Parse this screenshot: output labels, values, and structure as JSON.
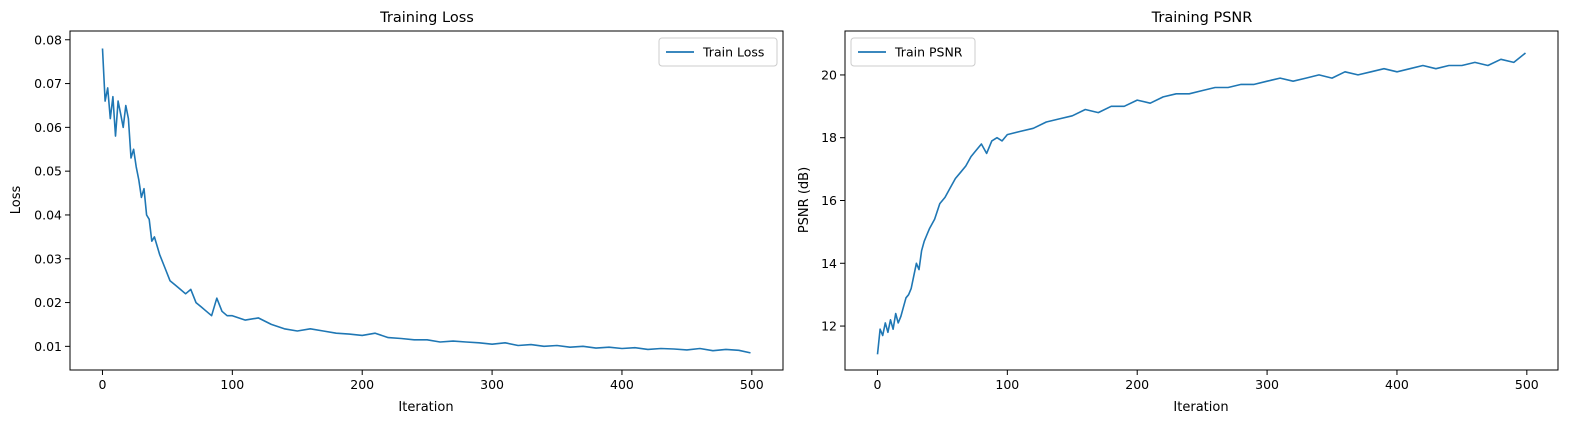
{
  "colors": {
    "line": "#1f77b4",
    "axes": "#000000",
    "legend_edge": "#cccccc"
  },
  "chart_data": [
    {
      "type": "line",
      "title": "Training Loss",
      "xlabel": "Iteration",
      "ylabel": "Loss",
      "xlim": [
        -25,
        524
      ],
      "ylim": [
        0.0046,
        0.082
      ],
      "xticks": [
        0,
        100,
        200,
        300,
        400,
        500
      ],
      "xtick_labels": [
        "0",
        "100",
        "200",
        "300",
        "400",
        "500"
      ],
      "yticks": [
        0.01,
        0.02,
        0.03,
        0.04,
        0.05,
        0.06,
        0.07,
        0.08
      ],
      "ytick_labels": [
        "0.01",
        "0.02",
        "0.03",
        "0.04",
        "0.05",
        "0.06",
        "0.07",
        "0.08"
      ],
      "grid": false,
      "legend": "upper-right",
      "series": [
        {
          "name": "Train Loss",
          "x": [
            0,
            2,
            4,
            6,
            8,
            10,
            12,
            14,
            16,
            18,
            20,
            22,
            24,
            26,
            28,
            30,
            32,
            34,
            36,
            38,
            40,
            44,
            48,
            52,
            56,
            60,
            64,
            68,
            72,
            76,
            80,
            84,
            88,
            92,
            96,
            100,
            110,
            120,
            130,
            140,
            150,
            160,
            170,
            180,
            190,
            200,
            210,
            220,
            230,
            240,
            250,
            260,
            270,
            280,
            290,
            300,
            310,
            320,
            330,
            340,
            350,
            360,
            370,
            380,
            390,
            400,
            410,
            420,
            430,
            440,
            450,
            460,
            470,
            480,
            490,
            499
          ],
          "y": [
            0.078,
            0.066,
            0.069,
            0.062,
            0.067,
            0.058,
            0.066,
            0.063,
            0.06,
            0.065,
            0.062,
            0.053,
            0.055,
            0.051,
            0.048,
            0.044,
            0.046,
            0.04,
            0.039,
            0.034,
            0.035,
            0.031,
            0.028,
            0.025,
            0.024,
            0.023,
            0.022,
            0.023,
            0.02,
            0.019,
            0.018,
            0.017,
            0.021,
            0.018,
            0.017,
            0.017,
            0.016,
            0.0165,
            0.015,
            0.014,
            0.0135,
            0.014,
            0.0135,
            0.013,
            0.0128,
            0.0125,
            0.013,
            0.012,
            0.0118,
            0.0115,
            0.0115,
            0.011,
            0.0112,
            0.011,
            0.0108,
            0.0105,
            0.0108,
            0.0102,
            0.0104,
            0.01,
            0.0102,
            0.0098,
            0.01,
            0.0096,
            0.0098,
            0.0095,
            0.0097,
            0.0093,
            0.0095,
            0.0094,
            0.0092,
            0.0095,
            0.009,
            0.0093,
            0.0091,
            0.0085
          ]
        }
      ]
    },
    {
      "type": "line",
      "title": "Training PSNR",
      "xlabel": "Iteration",
      "ylabel": "PSNR (dB)",
      "xlim": [
        -25,
        524
      ],
      "ylim": [
        10.6,
        21.4
      ],
      "xticks": [
        0,
        100,
        200,
        300,
        400,
        500
      ],
      "xtick_labels": [
        "0",
        "100",
        "200",
        "300",
        "400",
        "500"
      ],
      "yticks": [
        12,
        14,
        16,
        18,
        20
      ],
      "ytick_labels": [
        "12",
        "14",
        "16",
        "18",
        "20"
      ],
      "grid": false,
      "legend": "upper-left",
      "series": [
        {
          "name": "Train PSNR",
          "x": [
            0,
            2,
            4,
            6,
            8,
            10,
            12,
            14,
            16,
            18,
            20,
            22,
            24,
            26,
            28,
            30,
            32,
            34,
            36,
            38,
            40,
            44,
            48,
            52,
            56,
            60,
            64,
            68,
            72,
            76,
            80,
            84,
            88,
            92,
            96,
            100,
            110,
            120,
            130,
            140,
            150,
            160,
            170,
            180,
            190,
            200,
            210,
            220,
            230,
            240,
            250,
            260,
            270,
            280,
            290,
            300,
            310,
            320,
            330,
            340,
            350,
            360,
            370,
            380,
            390,
            400,
            410,
            420,
            430,
            440,
            450,
            460,
            470,
            480,
            490,
            499
          ],
          "y": [
            11.1,
            11.9,
            11.7,
            12.1,
            11.8,
            12.2,
            11.9,
            12.4,
            12.1,
            12.3,
            12.6,
            12.9,
            13.0,
            13.2,
            13.6,
            14.0,
            13.8,
            14.4,
            14.7,
            14.9,
            15.1,
            15.4,
            15.9,
            16.1,
            16.4,
            16.7,
            16.9,
            17.1,
            17.4,
            17.6,
            17.8,
            17.5,
            17.9,
            18.0,
            17.9,
            18.1,
            18.2,
            18.3,
            18.5,
            18.6,
            18.7,
            18.9,
            18.8,
            19.0,
            19.0,
            19.2,
            19.1,
            19.3,
            19.4,
            19.4,
            19.5,
            19.6,
            19.6,
            19.7,
            19.7,
            19.8,
            19.9,
            19.8,
            19.9,
            20.0,
            19.9,
            20.1,
            20.0,
            20.1,
            20.2,
            20.1,
            20.2,
            20.3,
            20.2,
            20.3,
            20.3,
            20.4,
            20.3,
            20.5,
            20.4,
            20.7
          ]
        }
      ]
    }
  ]
}
